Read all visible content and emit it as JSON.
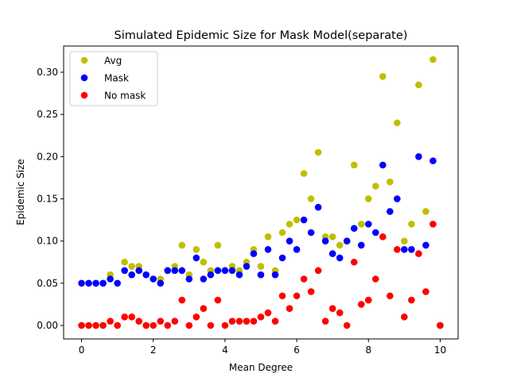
{
  "chart_data": {
    "type": "scatter",
    "title": "Simulated Epidemic Size for Mask Model(separate)",
    "xlabel": "Mean Degree",
    "ylabel": "Epidemic Size",
    "xlim": [
      -0.5,
      10.5
    ],
    "ylim": [
      -0.016,
      0.331
    ],
    "xticks": [
      0,
      2,
      4,
      6,
      8,
      10
    ],
    "yticks": [
      0.0,
      0.05,
      0.1,
      0.15,
      0.2,
      0.25,
      0.3
    ],
    "ytick_labels": [
      "0.00",
      "0.05",
      "0.10",
      "0.15",
      "0.20",
      "0.25",
      "0.30"
    ],
    "grid": false,
    "legend_position": "top-left",
    "x": [
      0.0,
      0.2,
      0.4,
      0.6,
      0.8,
      1.0,
      1.2,
      1.4,
      1.6,
      1.8,
      2.0,
      2.2,
      2.4,
      2.6,
      2.8,
      3.0,
      3.2,
      3.4,
      3.6,
      3.8,
      4.0,
      4.2,
      4.4,
      4.6,
      4.8,
      5.0,
      5.2,
      5.4,
      5.6,
      5.8,
      6.0,
      6.2,
      6.4,
      6.6,
      6.8,
      7.0,
      7.2,
      7.4,
      7.6,
      7.8,
      8.0,
      8.2,
      8.4,
      8.6,
      8.8,
      9.0,
      9.2,
      9.4,
      9.6,
      9.8,
      10.0
    ],
    "series": [
      {
        "name": "Avg",
        "color": "#bfbf00",
        "values": [
          0.0,
          0.0,
          0.0,
          0.0,
          0.06,
          0.0,
          0.075,
          0.07,
          0.07,
          0.0,
          0.055,
          0.055,
          0.065,
          0.07,
          0.095,
          0.06,
          0.09,
          0.075,
          0.065,
          0.095,
          0.065,
          0.07,
          0.065,
          0.075,
          0.09,
          0.07,
          0.105,
          0.065,
          0.11,
          0.12,
          0.125,
          0.18,
          0.15,
          0.205,
          0.105,
          0.105,
          0.095,
          0.1,
          0.19,
          0.12,
          0.15,
          0.165,
          0.295,
          0.17,
          0.24,
          0.1,
          0.12,
          0.285,
          0.135,
          0.315,
          0.0
        ]
      },
      {
        "name": "Mask",
        "color": "#0000ff",
        "values": [
          0.05,
          0.05,
          0.05,
          0.05,
          0.055,
          0.05,
          0.065,
          0.06,
          0.065,
          0.06,
          0.055,
          0.05,
          0.065,
          0.065,
          0.065,
          0.055,
          0.08,
          0.055,
          0.06,
          0.065,
          0.065,
          0.065,
          0.06,
          0.07,
          0.085,
          0.06,
          0.09,
          0.06,
          0.08,
          0.1,
          0.09,
          0.125,
          0.11,
          0.14,
          0.1,
          0.085,
          0.08,
          0.1,
          0.115,
          0.095,
          0.12,
          0.11,
          0.19,
          0.135,
          0.15,
          0.09,
          0.09,
          0.2,
          0.095,
          0.195,
          0.0
        ]
      },
      {
        "name": "No mask",
        "color": "#ff0000",
        "values": [
          0.0,
          0.0,
          0.0,
          0.0,
          0.005,
          0.0,
          0.01,
          0.01,
          0.005,
          0.0,
          0.0,
          0.005,
          0.0,
          0.005,
          0.03,
          0.0,
          0.01,
          0.02,
          0.0,
          0.03,
          0.0,
          0.005,
          0.005,
          0.005,
          0.005,
          0.01,
          0.015,
          0.005,
          0.035,
          0.02,
          0.035,
          0.055,
          0.04,
          0.065,
          0.005,
          0.02,
          0.015,
          0.0,
          0.075,
          0.025,
          0.03,
          0.055,
          0.105,
          0.035,
          0.09,
          0.01,
          0.03,
          0.085,
          0.04,
          0.12,
          0.0
        ]
      }
    ]
  }
}
